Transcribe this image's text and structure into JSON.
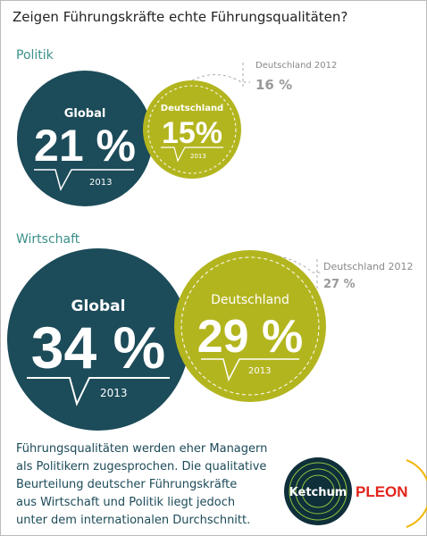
{
  "title": "Zeigen Führungskräfte echte Führungsqualitäten?",
  "sections": [
    {
      "label": "Politik",
      "global": {
        "label": "Global",
        "value": "21 %",
        "year": "2013"
      },
      "germany": {
        "label": "Deutschland",
        "value": "15%",
        "year": "2013"
      },
      "previous": {
        "label": "Deutschland 2012",
        "value": "16 %"
      }
    },
    {
      "label": "Wirtschaft",
      "global": {
        "label": "Global",
        "value": "34 %",
        "year": "2013"
      },
      "germany": {
        "label": "Deutschland",
        "value": "29 %",
        "year": "2013"
      },
      "previous": {
        "label": "Deutschland 2012",
        "value": "27 %"
      }
    }
  ],
  "footer": {
    "lines": [
      "Führungsqualitäten werden eher Managern",
      "als Politikern zugesprochen. Die qualitative",
      "Beurteilung deutscher Führungskräfte",
      "aus Wirtschaft und Politik liegt jedoch",
      "unter dem internationalen Durchschnitt."
    ]
  },
  "logos": {
    "ketchum": "Ketchum",
    "pleon": "PLEON"
  }
}
